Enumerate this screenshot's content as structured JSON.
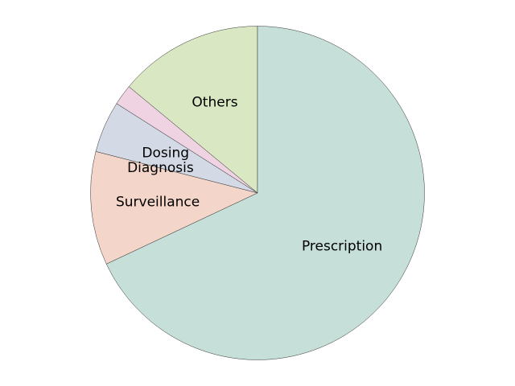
{
  "chart_data": {
    "type": "pie",
    "title": "",
    "start_angle_deg": 90,
    "direction": "counterclockwise",
    "slices": [
      {
        "label": "Others",
        "value": 14,
        "color": "#d9e7c3"
      },
      {
        "label": "",
        "value": 2,
        "color": "#efd3e2"
      },
      {
        "label": "Dosing",
        "value": 5,
        "color": "#d3dae6"
      },
      {
        "label": "Diagnosis",
        "value": 0,
        "color": "#d3dae6"
      },
      {
        "label": "Surveillance",
        "value": 11,
        "color": "#f4d5c9"
      },
      {
        "label": "Prescription",
        "value": 68,
        "color": "#c6e0d9"
      }
    ]
  }
}
